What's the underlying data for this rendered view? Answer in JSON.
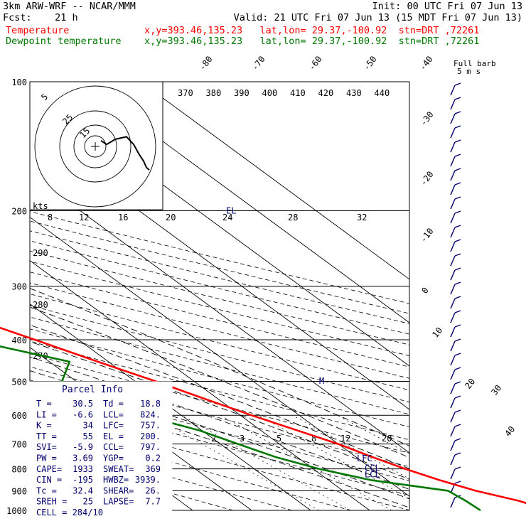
{
  "header": {
    "line1_left": "3km ARW-WRF -- NCAR/MMM",
    "line1_right": "Init: 00 UTC Fri 07 Jun 13",
    "line2_left": "Fcst:    21 h",
    "line2_right": "Valid: 21 UTC Fri 07 Jun 13 (15 MDT Fri 07 Jun 13)",
    "temp_label": "Temperature",
    "temp_info": "x,y=393.46,135.23   lat,lon= 29.37,-100.92  stn=DRT ,72261",
    "dew_label": "Dewpoint temperature",
    "dew_info": "x,y=393.46,135.23   lat,lon= 29.37,-100.92  stn=DRT ,72261"
  },
  "colors": {
    "temperature": "#ff0000",
    "dewpoint": "#007800",
    "text": "#000000",
    "parcel": "#00006e",
    "hodograph": "#000000",
    "isotherm": "#000000"
  },
  "full_barb_label": "Full barb",
  "full_barb_speed": "5 m s",
  "chart_data": {
    "type": "line",
    "chart_kind": "skew-T log-p",
    "y_axis": {
      "scale": "log",
      "ticks": [
        "100",
        "200",
        "300",
        "400",
        "500",
        "600",
        "700",
        "800",
        "900",
        "1000"
      ]
    },
    "isotherm_labels": [
      "-80",
      "-70",
      "-60",
      "-50",
      "-40",
      "-30",
      "-20",
      "-10",
      "0",
      "10",
      "20",
      "30",
      "40"
    ],
    "theta_e_labels": [
      "370",
      "380",
      "390",
      "400",
      "410",
      "420",
      "430",
      "440"
    ],
    "upper_labels": [
      "8",
      "12",
      "16",
      "20",
      "24",
      "28",
      "32"
    ],
    "dry_adiabat_labels": [
      "290",
      "280",
      "270"
    ],
    "mixing_ratio_labels": [
      "2",
      "3",
      "5",
      "8",
      "12",
      "20"
    ],
    "kts_label": "kts",
    "hodo_ring_labels": [
      "5",
      "25",
      "15"
    ],
    "level_markers": [
      {
        "label": "EL",
        "pressure": 200
      },
      {
        "label": "LFC",
        "pressure": 757
      },
      {
        "label": "CCL",
        "pressure": 797
      },
      {
        "label": "LCL",
        "pressure": 824
      }
    ],
    "m_marker": "M",
    "series": [
      {
        "name": "Temperature",
        "points": [
          [
            1000,
            30.5
          ],
          [
            950,
            27.5
          ],
          [
            900,
            22.5
          ],
          [
            850,
            18.8
          ],
          [
            800,
            15.6
          ],
          [
            750,
            12.7
          ],
          [
            700,
            10.0
          ],
          [
            650,
            6.1
          ],
          [
            600,
            1.9
          ],
          [
            550,
            -2.2
          ],
          [
            500,
            -6.5
          ],
          [
            450,
            -11.8
          ],
          [
            400,
            -17.4
          ],
          [
            350,
            -23.9
          ],
          [
            300,
            -31.3
          ],
          [
            250,
            -39.6
          ],
          [
            225,
            -44.1
          ],
          [
            200,
            -49.7
          ],
          [
            180,
            -53.9
          ],
          [
            160,
            -57.1
          ],
          [
            140,
            -59.3
          ],
          [
            120,
            -61.4
          ],
          [
            100,
            -64.1
          ]
        ]
      },
      {
        "name": "Dewpoint temperature",
        "points": [
          [
            1000,
            18.8
          ],
          [
            950,
            18.5
          ],
          [
            900,
            17.8
          ],
          [
            850,
            7.2
          ],
          [
            800,
            1.0
          ],
          [
            750,
            -3.7
          ],
          [
            700,
            -7.0
          ],
          [
            650,
            -10.5
          ],
          [
            600,
            -16.6
          ],
          [
            550,
            -23.6
          ],
          [
            500,
            -22.4
          ],
          [
            450,
            -16.6
          ],
          [
            400,
            -28.4
          ],
          [
            350,
            -47.0
          ],
          [
            300,
            -73.5
          ],
          [
            250,
            -63.2
          ],
          [
            225,
            -55.6
          ],
          [
            200,
            -62.3
          ],
          [
            180,
            -71.0
          ],
          [
            160,
            -75.6
          ],
          [
            140,
            -79.4
          ],
          [
            120,
            -85.0
          ],
          [
            100,
            -87.7
          ]
        ]
      }
    ],
    "hodograph": [
      [
        4,
        -9
      ],
      [
        8,
        -6
      ],
      [
        14,
        -10
      ],
      [
        22,
        -12
      ],
      [
        27,
        -6
      ],
      [
        31,
        2
      ],
      [
        34,
        7
      ],
      [
        36,
        12
      ],
      [
        38,
        14
      ]
    ]
  },
  "parcel_info": {
    "title": "Parcel Info",
    "rows": [
      [
        "T  =",
        "30.5",
        "Td =",
        "18.8"
      ],
      [
        "LI =",
        "-6.6",
        "LCL=",
        "824."
      ],
      [
        "K  =",
        "34",
        "LFC=",
        "757."
      ],
      [
        "TT =",
        "55",
        "EL =",
        "200."
      ],
      [
        "SVI=",
        "-5.9",
        "CCL=",
        "797."
      ],
      [
        "PW =",
        "3.69",
        "YGP=",
        "0.2"
      ],
      [
        "CAPE=",
        "1933",
        "SWEAT=",
        "369"
      ],
      [
        "CIN =",
        "-195",
        "HWBZ=",
        "3939."
      ],
      [
        "Tc =",
        "32.4",
        "SHEAR=",
        "26."
      ],
      [
        "SREH =",
        "25",
        "LAPSE=",
        "7.7"
      ]
    ],
    "cell": "CELL = 284/10"
  }
}
